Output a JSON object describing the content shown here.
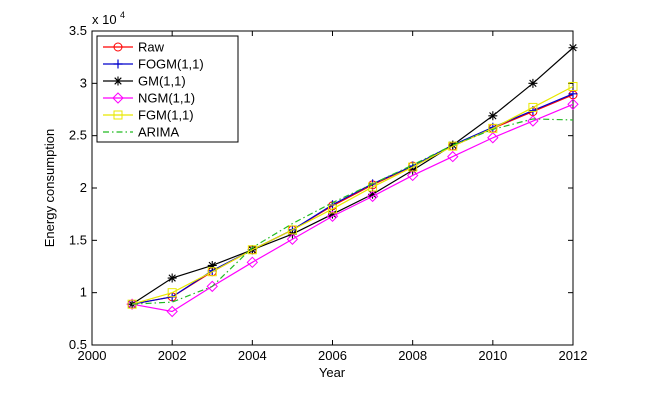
{
  "chart_data": {
    "type": "line",
    "title": "",
    "xlabel": "Year",
    "ylabel": "Energy consumption",
    "y_multiplier_base": "x 10",
    "y_multiplier_exp": "4",
    "xlim": [
      2000,
      2012
    ],
    "ylim": [
      0.5,
      3.5
    ],
    "x_ticks": [
      2000,
      2002,
      2004,
      2006,
      2008,
      2010,
      2012
    ],
    "y_ticks": [
      0.5,
      1,
      1.5,
      2,
      2.5,
      3,
      3.5
    ],
    "x_tick_labels": [
      "2000",
      "2002",
      "2004",
      "2006",
      "2008",
      "2010",
      "2012"
    ],
    "y_tick_labels": [
      "0.5",
      "1",
      "1.5",
      "2",
      "2.5",
      "3",
      "3.5"
    ],
    "grid": false,
    "legend_position": "top-left",
    "x": [
      2001,
      2002,
      2003,
      2004,
      2005,
      2006,
      2007,
      2008,
      2009,
      2010,
      2011,
      2012
    ],
    "series": [
      {
        "name": "Raw",
        "color": "#ff0000",
        "marker": "circle",
        "dash": "solid",
        "values": [
          0.89,
          0.96,
          1.2,
          1.41,
          1.6,
          1.83,
          2.03,
          2.21,
          2.4,
          2.57,
          2.73,
          2.89
        ]
      },
      {
        "name": "FOGM(1,1)",
        "color": "#0000cc",
        "marker": "plus",
        "dash": "solid",
        "values": [
          0.89,
          0.96,
          1.21,
          1.41,
          1.6,
          1.84,
          2.04,
          2.21,
          2.41,
          2.58,
          2.74,
          2.9
        ]
      },
      {
        "name": "GM(1,1)",
        "color": "#000000",
        "marker": "star",
        "dash": "solid",
        "values": [
          0.89,
          1.14,
          1.26,
          1.41,
          1.56,
          1.75,
          1.94,
          2.17,
          2.41,
          2.69,
          3.0,
          3.34
        ]
      },
      {
        "name": "NGM(1,1)",
        "color": "#ff00ff",
        "marker": "diamond",
        "dash": "solid",
        "values": [
          0.89,
          0.82,
          1.06,
          1.29,
          1.51,
          1.73,
          1.92,
          2.12,
          2.3,
          2.48,
          2.64,
          2.8
        ]
      },
      {
        "name": "FGM(1,1)",
        "color": "#e8e800",
        "marker": "square",
        "dash": "solid",
        "values": [
          0.89,
          1.0,
          1.2,
          1.41,
          1.6,
          1.8,
          2.01,
          2.2,
          2.4,
          2.57,
          2.77,
          2.97
        ]
      },
      {
        "name": "ARIMA",
        "color": "#22bb22",
        "marker": "none",
        "dash": "dashdot",
        "values": [
          0.89,
          0.91,
          1.06,
          1.43,
          1.66,
          1.86,
          2.04,
          2.22,
          2.41,
          2.56,
          2.66,
          2.65
        ]
      }
    ]
  }
}
